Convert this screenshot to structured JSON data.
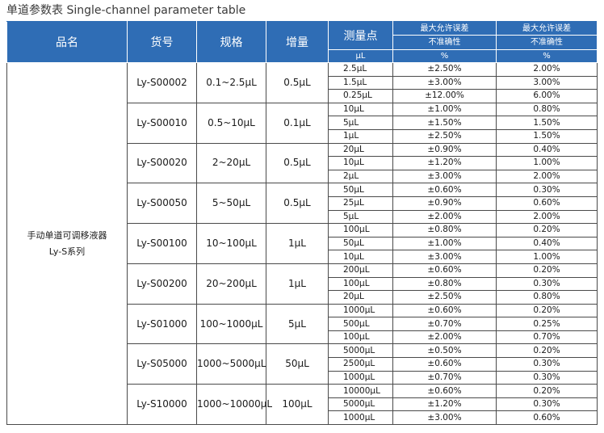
{
  "title": "单道参数表 Single-channel parameter table",
  "header": {
    "name": "品名",
    "code": "货号",
    "spec": "规格",
    "increment": "增量",
    "test_point": "测量点",
    "max_error_label": "最大允许误差",
    "inaccuracy": "不准确性",
    "imprecision": "不准确性",
    "unit_point": "μL",
    "unit_pct1": "%",
    "unit_pct2": "%"
  },
  "series": {
    "line1": "手动单道可调移液器",
    "line2": "Ly-S系列"
  },
  "groups": [
    {
      "code": "Ly-S00002",
      "spec": "0.1~2.5μL",
      "incr": "0.5μL",
      "rows": [
        [
          "2.5μL",
          "±2.50%",
          "2.00%"
        ],
        [
          "1.5μL",
          "±3.00%",
          "3.00%"
        ],
        [
          "0.25μL",
          "±12.00%",
          "6.00%"
        ]
      ]
    },
    {
      "code": "Ly-S00010",
      "spec": "0.5~10μL",
      "incr": "0.1μL",
      "rows": [
        [
          "10μL",
          "±1.00%",
          "0.80%"
        ],
        [
          "5μL",
          "±1.50%",
          "1.50%"
        ],
        [
          "1μL",
          "±2.50%",
          "1.50%"
        ]
      ]
    },
    {
      "code": "Ly-S00020",
      "spec": "2~20μL",
      "incr": "0.5μL",
      "rows": [
        [
          "20μL",
          "±0.90%",
          "0.40%"
        ],
        [
          "10μL",
          "±1.20%",
          "1.00%"
        ],
        [
          "2μL",
          "±3.00%",
          "2.00%"
        ]
      ]
    },
    {
      "code": "Ly-S00050",
      "spec": "5~50μL",
      "incr": "0.5μL",
      "rows": [
        [
          "50μL",
          "±0.60%",
          "0.30%"
        ],
        [
          "25μL",
          "±0.90%",
          "0.60%"
        ],
        [
          "5μL",
          "±2.00%",
          "2.00%"
        ]
      ]
    },
    {
      "code": "Ly-S00100",
      "spec": "10~100μL",
      "incr": "1μL",
      "rows": [
        [
          "100μL",
          "±0.80%",
          "0.20%"
        ],
        [
          "50μL",
          "±1.00%",
          "0.40%"
        ],
        [
          "10μL",
          "±3.00%",
          "1.00%"
        ]
      ]
    },
    {
      "code": "Ly-S00200",
      "spec": "20~200μL",
      "incr": "1μL",
      "rows": [
        [
          "200μL",
          "±0.60%",
          "0.20%"
        ],
        [
          "100μL",
          "±0.80%",
          "0.30%"
        ],
        [
          "20μL",
          "±2.50%",
          "0.80%"
        ]
      ]
    },
    {
      "code": "Ly-S01000",
      "spec": "100~1000μL",
      "incr": "5μL",
      "rows": [
        [
          "1000μL",
          "±0.60%",
          "0.20%"
        ],
        [
          "500μL",
          "±0.70%",
          "0.25%"
        ],
        [
          "100μL",
          "±2.00%",
          "0.70%"
        ]
      ]
    },
    {
      "code": "Ly-S05000",
      "spec": "1000~5000μL",
      "incr": "50μL",
      "rows": [
        [
          "5000μL",
          "±0.50%",
          "0.20%"
        ],
        [
          "2500μL",
          "±0.60%",
          "0.30%"
        ],
        [
          "1000μL",
          "±0.70%",
          "0.30%"
        ]
      ]
    },
    {
      "code": "Ly-S10000",
      "spec": "1000~10000μL",
      "incr": "100μL",
      "rows": [
        [
          "10000μL",
          "±0.60%",
          "0.20%"
        ],
        [
          "5000μL",
          "±1.20%",
          "0.30%"
        ],
        [
          "1000μL",
          "±3.00%",
          "0.60%"
        ]
      ]
    }
  ]
}
